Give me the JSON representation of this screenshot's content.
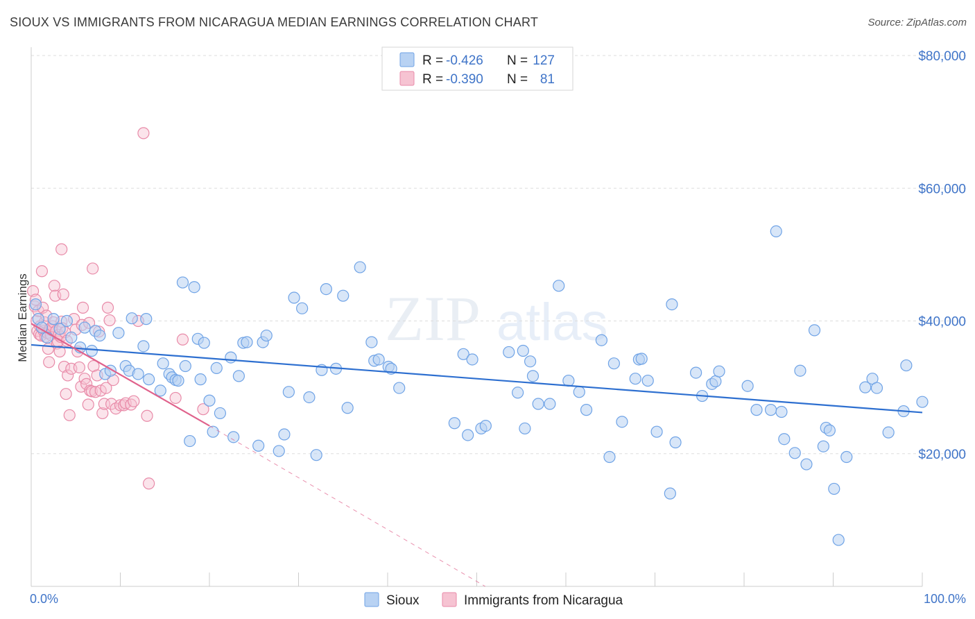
{
  "title": "SIOUX VS IMMIGRANTS FROM NICARAGUA MEDIAN EARNINGS CORRELATION CHART",
  "source": "Source: ZipAtlas.com",
  "watermark": {
    "zip": "ZIP",
    "atlas": "atlas"
  },
  "colors": {
    "sioux": "#6fa3e6",
    "sioux_fill": "#b8d2f3",
    "sioux_line": "#2d6fd0",
    "nicaragua": "#e88aa8",
    "nicaragua_fill": "#f6c3d2",
    "nicaragua_line": "#e0628c",
    "axis_text": "#3f74c8",
    "grid": "#dddddd"
  },
  "legend": {
    "rows": [
      {
        "r_label": "R =",
        "r_value": "-0.426",
        "n_label": "N =",
        "n_value": "127"
      },
      {
        "r_label": "R =",
        "r_value": "-0.390",
        "n_label": "N =",
        "n_value": "81"
      }
    ]
  },
  "chart_data": {
    "type": "scatter",
    "title": "SIOUX VS IMMIGRANTS FROM NICARAGUA MEDIAN EARNINGS CORRELATION CHART",
    "xlabel": "",
    "ylabel": "Median Earnings",
    "xlim": [
      0,
      100
    ],
    "ylim": [
      0,
      80000
    ],
    "x_tick_labels": [
      "0.0%",
      "100.0%"
    ],
    "y_ticks": [
      20000,
      40000,
      60000,
      80000
    ],
    "y_tick_labels": [
      "$20,000",
      "$40,000",
      "$60,000",
      "$80,000"
    ],
    "grid": true,
    "legend_position": "bottom",
    "series": [
      {
        "name": "Sioux",
        "r": -0.426,
        "n": 127,
        "trend": {
          "x": [
            0,
            100
          ],
          "y": [
            36400,
            26200
          ]
        },
        "points": [
          [
            0.5,
            42500
          ],
          [
            0.8,
            40300
          ],
          [
            1.2,
            39000
          ],
          [
            1.8,
            37500
          ],
          [
            2.5,
            40300
          ],
          [
            3.2,
            38800
          ],
          [
            4.0,
            40000
          ],
          [
            4.5,
            37500
          ],
          [
            5.5,
            36000
          ],
          [
            6.0,
            39000
          ],
          [
            6.8,
            35500
          ],
          [
            7.2,
            38500
          ],
          [
            7.7,
            37800
          ],
          [
            8.3,
            32000
          ],
          [
            8.9,
            32500
          ],
          [
            9.8,
            38200
          ],
          [
            10.6,
            33200
          ],
          [
            11.0,
            32500
          ],
          [
            11.3,
            40400
          ],
          [
            12.0,
            32000
          ],
          [
            12.6,
            36200
          ],
          [
            12.9,
            40300
          ],
          [
            13.2,
            31200
          ],
          [
            14.5,
            29500
          ],
          [
            14.8,
            33600
          ],
          [
            15.5,
            32000
          ],
          [
            15.8,
            31500
          ],
          [
            16.2,
            31100
          ],
          [
            16.5,
            31000
          ],
          [
            17.0,
            45800
          ],
          [
            17.3,
            33200
          ],
          [
            17.8,
            21900
          ],
          [
            18.3,
            45100
          ],
          [
            18.7,
            37300
          ],
          [
            19.0,
            31200
          ],
          [
            19.4,
            36700
          ],
          [
            20.0,
            28000
          ],
          [
            20.4,
            23300
          ],
          [
            20.8,
            32900
          ],
          [
            21.2,
            26100
          ],
          [
            22.4,
            34500
          ],
          [
            22.7,
            22500
          ],
          [
            23.3,
            31700
          ],
          [
            23.8,
            36700
          ],
          [
            24.2,
            36800
          ],
          [
            25.5,
            21200
          ],
          [
            26.0,
            36800
          ],
          [
            26.4,
            37800
          ],
          [
            27.8,
            20400
          ],
          [
            28.4,
            22900
          ],
          [
            28.9,
            29300
          ],
          [
            29.5,
            43500
          ],
          [
            30.4,
            41900
          ],
          [
            31.2,
            28500
          ],
          [
            32.0,
            19800
          ],
          [
            32.6,
            32600
          ],
          [
            33.1,
            44800
          ],
          [
            34.2,
            32800
          ],
          [
            35.0,
            43800
          ],
          [
            35.5,
            26900
          ],
          [
            36.9,
            48100
          ],
          [
            38.2,
            36800
          ],
          [
            38.5,
            34000
          ],
          [
            39.0,
            34200
          ],
          [
            40.1,
            33100
          ],
          [
            40.4,
            32800
          ],
          [
            41.3,
            29900
          ],
          [
            47.5,
            24600
          ],
          [
            48.5,
            35000
          ],
          [
            49.0,
            22800
          ],
          [
            49.5,
            34200
          ],
          [
            50.5,
            23800
          ],
          [
            51.0,
            24200
          ],
          [
            53.6,
            35300
          ],
          [
            54.6,
            29200
          ],
          [
            55.2,
            35500
          ],
          [
            55.4,
            23800
          ],
          [
            56.0,
            33900
          ],
          [
            56.3,
            31700
          ],
          [
            56.9,
            27500
          ],
          [
            58.2,
            27500
          ],
          [
            59.2,
            45300
          ],
          [
            60.3,
            31000
          ],
          [
            61.5,
            29300
          ],
          [
            62.3,
            26600
          ],
          [
            64.0,
            37100
          ],
          [
            64.9,
            19500
          ],
          [
            65.4,
            33600
          ],
          [
            66.3,
            24800
          ],
          [
            67.8,
            31300
          ],
          [
            68.2,
            34200
          ],
          [
            68.5,
            34300
          ],
          [
            69.2,
            31000
          ],
          [
            70.2,
            23300
          ],
          [
            71.7,
            14000
          ],
          [
            71.9,
            42500
          ],
          [
            72.3,
            21700
          ],
          [
            74.6,
            32200
          ],
          [
            75.3,
            28700
          ],
          [
            76.4,
            30500
          ],
          [
            76.8,
            30900
          ],
          [
            77.2,
            32400
          ],
          [
            80.4,
            30200
          ],
          [
            81.4,
            26600
          ],
          [
            83.0,
            26600
          ],
          [
            83.6,
            53500
          ],
          [
            84.2,
            26300
          ],
          [
            84.5,
            22200
          ],
          [
            85.7,
            20100
          ],
          [
            86.3,
            32500
          ],
          [
            87.0,
            18400
          ],
          [
            87.9,
            38600
          ],
          [
            88.9,
            21100
          ],
          [
            89.2,
            23900
          ],
          [
            89.6,
            23500
          ],
          [
            90.1,
            14700
          ],
          [
            90.6,
            7000
          ],
          [
            91.5,
            19500
          ],
          [
            93.6,
            30000
          ],
          [
            94.4,
            31300
          ],
          [
            94.9,
            29900
          ],
          [
            96.2,
            23200
          ],
          [
            97.9,
            26400
          ],
          [
            98.2,
            33300
          ],
          [
            100.0,
            27800
          ]
        ]
      },
      {
        "name": "Immigrants from Nicaragua",
        "r": -0.39,
        "n": 81,
        "trend": {
          "x": [
            0,
            20
          ],
          "y": [
            39600,
            24200
          ]
        },
        "trend_extension": {
          "x": [
            20,
            53
          ],
          "y": [
            24200,
            -1600
          ]
        },
        "points": [
          [
            0.2,
            44500
          ],
          [
            0.4,
            42200
          ],
          [
            0.5,
            43200
          ],
          [
            0.6,
            40000
          ],
          [
            0.7,
            38500
          ],
          [
            0.8,
            41500
          ],
          [
            0.9,
            38000
          ],
          [
            1.0,
            39200
          ],
          [
            1.1,
            37800
          ],
          [
            1.2,
            47500
          ],
          [
            1.3,
            42000
          ],
          [
            1.4,
            38500
          ],
          [
            1.5,
            39800
          ],
          [
            1.6,
            37600
          ],
          [
            1.7,
            40800
          ],
          [
            1.8,
            38200
          ],
          [
            1.9,
            35800
          ],
          [
            2.0,
            33800
          ],
          [
            2.1,
            38800
          ],
          [
            2.2,
            37900
          ],
          [
            2.3,
            38600
          ],
          [
            2.4,
            39200
          ],
          [
            2.5,
            39800
          ],
          [
            2.6,
            45300
          ],
          [
            2.7,
            43800
          ],
          [
            2.8,
            38500
          ],
          [
            2.9,
            36600
          ],
          [
            3.0,
            36900
          ],
          [
            3.1,
            37900
          ],
          [
            3.2,
            35400
          ],
          [
            3.3,
            37600
          ],
          [
            3.4,
            39900
          ],
          [
            3.5,
            38900
          ],
          [
            3.6,
            44000
          ],
          [
            3.7,
            33100
          ],
          [
            3.8,
            38300
          ],
          [
            3.9,
            29000
          ],
          [
            4.0,
            37000
          ],
          [
            4.1,
            31800
          ],
          [
            4.3,
            25800
          ],
          [
            4.5,
            32800
          ],
          [
            4.8,
            40300
          ],
          [
            5.0,
            38700
          ],
          [
            5.2,
            35400
          ],
          [
            5.4,
            33000
          ],
          [
            5.6,
            30100
          ],
          [
            5.7,
            39400
          ],
          [
            5.8,
            42000
          ],
          [
            6.0,
            31300
          ],
          [
            6.2,
            30500
          ],
          [
            6.4,
            27400
          ],
          [
            6.5,
            39700
          ],
          [
            6.6,
            29500
          ],
          [
            6.8,
            29400
          ],
          [
            6.9,
            47900
          ],
          [
            7.0,
            33200
          ],
          [
            7.2,
            29300
          ],
          [
            7.4,
            31800
          ],
          [
            7.6,
            38400
          ],
          [
            7.8,
            29500
          ],
          [
            8.0,
            26100
          ],
          [
            8.2,
            27500
          ],
          [
            8.4,
            29900
          ],
          [
            8.6,
            42000
          ],
          [
            8.8,
            40100
          ],
          [
            9.0,
            27500
          ],
          [
            9.2,
            31100
          ],
          [
            9.5,
            26800
          ],
          [
            10.0,
            27300
          ],
          [
            10.4,
            27300
          ],
          [
            10.6,
            27600
          ],
          [
            11.2,
            27400
          ],
          [
            11.5,
            27900
          ],
          [
            12.0,
            40000
          ],
          [
            12.6,
            68300
          ],
          [
            13.0,
            25700
          ],
          [
            13.2,
            15500
          ],
          [
            16.2,
            28400
          ],
          [
            17.0,
            37200
          ],
          [
            19.3,
            26700
          ],
          [
            3.4,
            50800
          ]
        ]
      }
    ]
  }
}
